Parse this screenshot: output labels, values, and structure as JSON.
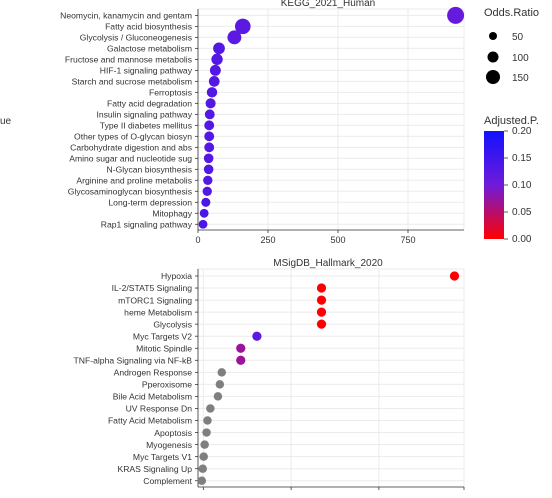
{
  "chart_data": [
    {
      "type": "scatter",
      "title": "KEGG_2021_Human",
      "xlabel": "",
      "ylabel": "",
      "xlim": [
        0,
        950
      ],
      "xticks": [
        0,
        250,
        500,
        750
      ],
      "grid": true,
      "categories": [
        "Neomycin, kanamycin and gentam",
        "Fatty acid biosynthesis",
        "Glycolysis / Gluconeogenesis",
        "Galactose metabolism",
        "Fructose and mannose metabolis",
        "HIF-1 signaling pathway",
        "Starch and sucrose metabolism",
        "Ferroptosis",
        "Fatty acid degradation",
        "Insulin signaling pathway",
        "Type II diabetes mellitus",
        "Other types of O-glycan biosyn",
        "Carbohydrate digestion and abs",
        "Amino sugar and nucleotide sug",
        "N-Glycan biosynthesis",
        "Arginine and proline metabolis",
        "Glycosaminoglycan biosynthesis",
        "Long-term depression",
        "Mitophagy",
        "Rap1 signaling pathway"
      ],
      "points": [
        {
          "x": 920,
          "odds_ratio": 160,
          "adjusted_p": 0.11
        },
        {
          "x": 160,
          "odds_ratio": 100,
          "adjusted_p": 0.12
        },
        {
          "x": 130,
          "odds_ratio": 70,
          "adjusted_p": 0.12
        },
        {
          "x": 75,
          "odds_ratio": 40,
          "adjusted_p": 0.13
        },
        {
          "x": 68,
          "odds_ratio": 35,
          "adjusted_p": 0.13
        },
        {
          "x": 62,
          "odds_ratio": 30,
          "adjusted_p": 0.13
        },
        {
          "x": 58,
          "odds_ratio": 28,
          "adjusted_p": 0.13
        },
        {
          "x": 50,
          "odds_ratio": 25,
          "adjusted_p": 0.13
        },
        {
          "x": 45,
          "odds_ratio": 22,
          "adjusted_p": 0.13
        },
        {
          "x": 42,
          "odds_ratio": 20,
          "adjusted_p": 0.13
        },
        {
          "x": 40,
          "odds_ratio": 20,
          "adjusted_p": 0.13
        },
        {
          "x": 40,
          "odds_ratio": 20,
          "adjusted_p": 0.13
        },
        {
          "x": 40,
          "odds_ratio": 20,
          "adjusted_p": 0.13
        },
        {
          "x": 38,
          "odds_ratio": 18,
          "adjusted_p": 0.13
        },
        {
          "x": 38,
          "odds_ratio": 18,
          "adjusted_p": 0.13
        },
        {
          "x": 35,
          "odds_ratio": 16,
          "adjusted_p": 0.13
        },
        {
          "x": 33,
          "odds_ratio": 16,
          "adjusted_p": 0.13
        },
        {
          "x": 28,
          "odds_ratio": 14,
          "adjusted_p": 0.14
        },
        {
          "x": 22,
          "odds_ratio": 12,
          "adjusted_p": 0.14
        },
        {
          "x": 18,
          "odds_ratio": 12,
          "adjusted_p": 0.14
        }
      ]
    },
    {
      "type": "scatter",
      "title": "MSigDB_Hallmark_2020",
      "xlabel": "",
      "ylabel": "",
      "xlim": [
        0,
        28
      ],
      "grid": true,
      "categories": [
        "Hypoxia",
        "IL-2/STAT5 Signaling",
        "mTORC1 Signaling",
        "heme Metabolism",
        "Glycolysis",
        "Myc Targets V2",
        "Mitotic Spindle",
        "TNF-alpha Signaling via NF-kB",
        "Androgen Response",
        "Pperoxisome",
        "Bile Acid Metabolism",
        "UV Response Dn",
        "Fatty Acid Metabolism",
        "Apoptosis",
        "Myogenesis",
        "Myc Targets V1",
        "KRAS Signaling Up",
        "Complement"
      ],
      "points": [
        {
          "x": 27,
          "odds_ratio": 15,
          "adjusted_p": 0.0
        },
        {
          "x": 13,
          "odds_ratio": 15,
          "adjusted_p": 0.0
        },
        {
          "x": 13,
          "odds_ratio": 15,
          "adjusted_p": 0.0
        },
        {
          "x": 13,
          "odds_ratio": 15,
          "adjusted_p": 0.0
        },
        {
          "x": 13,
          "odds_ratio": 15,
          "adjusted_p": 0.0
        },
        {
          "x": 6.2,
          "odds_ratio": 15,
          "adjusted_p": 0.12
        },
        {
          "x": 4.5,
          "odds_ratio": 15,
          "adjusted_p": 0.07
        },
        {
          "x": 4.5,
          "odds_ratio": 15,
          "adjusted_p": 0.07
        },
        {
          "x": 2.5,
          "odds_ratio": 10,
          "adjusted_p": null
        },
        {
          "x": 2.3,
          "odds_ratio": 10,
          "adjusted_p": null
        },
        {
          "x": 2.1,
          "odds_ratio": 10,
          "adjusted_p": null
        },
        {
          "x": 1.3,
          "odds_ratio": 10,
          "adjusted_p": null
        },
        {
          "x": 1.0,
          "odds_ratio": 10,
          "adjusted_p": null
        },
        {
          "x": 0.9,
          "odds_ratio": 10,
          "adjusted_p": null
        },
        {
          "x": 0.7,
          "odds_ratio": 10,
          "adjusted_p": null
        },
        {
          "x": 0.6,
          "odds_ratio": 10,
          "adjusted_p": null
        },
        {
          "x": 0.5,
          "odds_ratio": 10,
          "adjusted_p": null
        },
        {
          "x": 0.4,
          "odds_ratio": 10,
          "adjusted_p": null
        }
      ]
    }
  ],
  "legend": {
    "size": {
      "title": "Odds.Ratio",
      "values": [
        50,
        100,
        150
      ]
    },
    "color": {
      "title": "Adjusted.P.",
      "values": [
        0.2,
        0.15,
        0.1,
        0.05,
        0.0
      ],
      "range": [
        0.0,
        0.2
      ],
      "colors": [
        "#ff0000",
        "#6f1bd9",
        "#1212ff"
      ]
    },
    "left_fragment": "ue"
  },
  "na_color": "#7f7f7f",
  "grid_color": "#ebebeb",
  "axis_color": "#333333"
}
